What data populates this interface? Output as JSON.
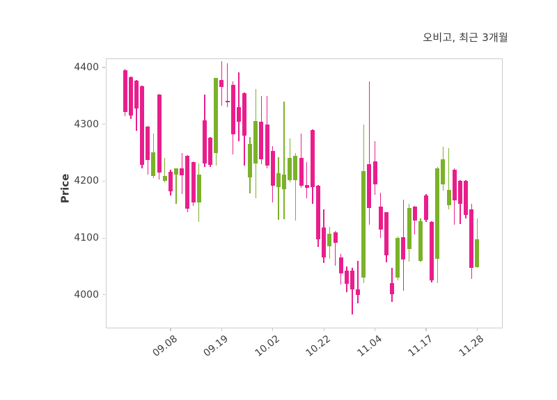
{
  "header": {
    "title": "오비고, 최근 3개월"
  },
  "colors": {
    "up": "#7ab228",
    "down": "#e91e8c",
    "grid": "#d8d8d8",
    "spine": "#cccccc",
    "tick_text": "#3d3d3d",
    "title_text": "#3a3a3a",
    "background": "#ffffff"
  },
  "chart_data": {
    "type": "candlestick",
    "title": "오비고, 최근 3개월",
    "ylabel": "Price",
    "xlabel": "",
    "grid": "dashed, both axes",
    "legend": "none",
    "y_ticks": [
      4400,
      4300,
      4200,
      4100,
      4000
    ],
    "ylim": [
      3941,
      4416
    ],
    "x_tick_labels": [
      "09.08",
      "09.19",
      "10.02",
      "10.22",
      "11.04",
      "11.17",
      "11.28"
    ],
    "x_tick_indices": [
      8,
      17,
      26,
      35,
      44,
      53,
      62
    ],
    "candle_count": 63,
    "up_color": "#7ab228",
    "down_color": "#e91e8c",
    "candles_ohlc": [
      [
        4395,
        4398,
        4315,
        4322
      ],
      [
        4383,
        4384,
        4309,
        4315
      ],
      [
        4377,
        4378,
        4289,
        4328
      ],
      [
        4367,
        4368,
        4222,
        4229
      ],
      [
        4296,
        4297,
        4211,
        4237
      ],
      [
        4209,
        4284,
        4206,
        4251
      ],
      [
        4352,
        4353,
        4203,
        4215
      ],
      [
        4200,
        4241,
        4198,
        4209
      ],
      [
        4217,
        4220,
        4175,
        4182
      ],
      [
        4211,
        4222,
        4160,
        4222
      ],
      [
        4222,
        4249,
        4177,
        4210
      ],
      [
        4245,
        4246,
        4145,
        4151
      ],
      [
        4234,
        4235,
        4156,
        4162
      ],
      [
        4163,
        4231,
        4128,
        4212
      ],
      [
        4307,
        4352,
        4225,
        4231
      ],
      [
        4277,
        4278,
        4225,
        4229
      ],
      [
        4249,
        4382,
        4227,
        4382
      ],
      [
        4378,
        4411,
        4333,
        4366
      ],
      [
        4341,
        4407,
        4330,
        4339
      ],
      [
        4370,
        4376,
        4247,
        4282
      ],
      [
        4330,
        4392,
        4270,
        4305
      ],
      [
        4355,
        4356,
        4228,
        4280
      ],
      [
        4207,
        4278,
        4178,
        4266
      ],
      [
        4231,
        4362,
        4170,
        4306
      ],
      [
        4305,
        4350,
        4230,
        4239
      ],
      [
        4300,
        4350,
        4222,
        4228
      ],
      [
        4253,
        4262,
        4162,
        4192
      ],
      [
        4190,
        4242,
        4132,
        4214
      ],
      [
        4186,
        4340,
        4133,
        4211
      ],
      [
        4202,
        4275,
        4198,
        4241
      ],
      [
        4202,
        4250,
        4131,
        4245
      ],
      [
        4241,
        4284,
        4188,
        4192
      ],
      [
        4193,
        4234,
        4170,
        4188
      ],
      [
        4290,
        4291,
        4160,
        4190
      ],
      [
        4192,
        4193,
        4084,
        4098
      ],
      [
        4119,
        4150,
        4056,
        4066
      ],
      [
        4086,
        4120,
        4064,
        4108
      ],
      [
        4110,
        4113,
        4051,
        4092
      ],
      [
        4066,
        4072,
        4018,
        4038
      ],
      [
        4043,
        4050,
        4005,
        4019
      ],
      [
        4043,
        4048,
        3966,
        4009
      ],
      [
        4010,
        4060,
        3985,
        4000
      ],
      [
        4030,
        4300,
        4020,
        4218
      ],
      [
        4230,
        4375,
        4123,
        4153
      ],
      [
        4235,
        4270,
        4176,
        4195
      ],
      [
        4155,
        4180,
        4100,
        4115
      ],
      [
        4145,
        4146,
        4057,
        4070
      ],
      [
        4021,
        4047,
        3988,
        4001
      ],
      [
        4030,
        4103,
        4025,
        4100
      ],
      [
        4101,
        4168,
        4007,
        4062
      ],
      [
        4080,
        4160,
        4058,
        4153
      ],
      [
        4155,
        4156,
        4106,
        4131
      ],
      [
        4060,
        4134,
        4058,
        4129
      ],
      [
        4175,
        4177,
        4128,
        4132
      ],
      [
        4128,
        4130,
        4022,
        4025
      ],
      [
        4064,
        4225,
        4020,
        4222
      ],
      [
        4194,
        4260,
        4184,
        4238
      ],
      [
        4158,
        4258,
        4150,
        4185
      ],
      [
        4220,
        4222,
        4123,
        4166
      ],
      [
        4200,
        4202,
        4125,
        4160
      ],
      [
        4200,
        4202,
        4135,
        4141
      ],
      [
        4150,
        4160,
        4028,
        4047
      ],
      [
        4049,
        4134,
        4047,
        4098
      ]
    ]
  }
}
